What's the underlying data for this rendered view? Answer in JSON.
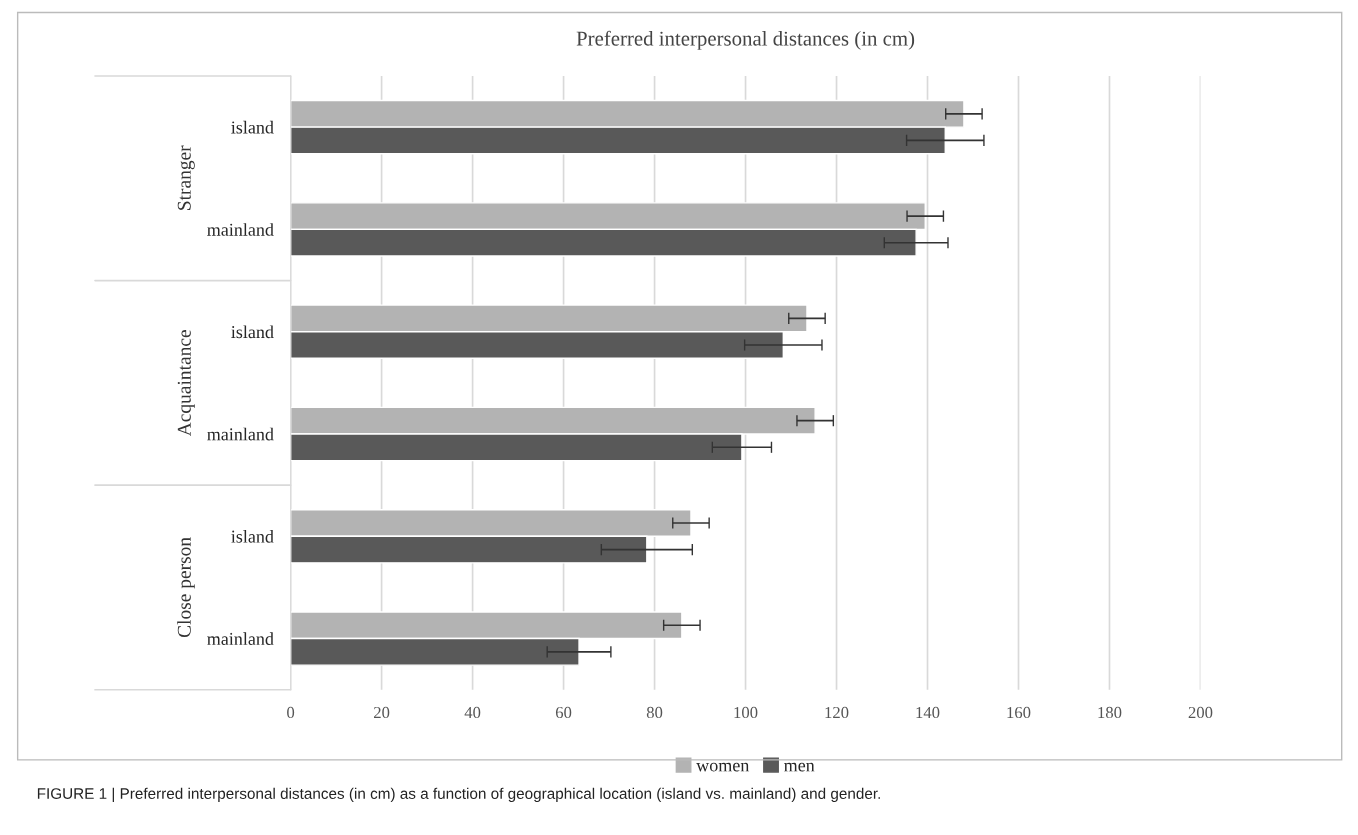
{
  "chart_data": {
    "type": "bar",
    "orientation": "horizontal",
    "title": "Preferred interpersonal distances (in cm)",
    "categories": [
      "island",
      "mainland",
      "island",
      "mainland",
      "island",
      "mainland"
    ],
    "series": [
      {
        "name": "women",
        "color": "#b3b3b3",
        "values": [
          148,
          139.5,
          113.5,
          115.3,
          88,
          86
        ],
        "errors": [
          4,
          4,
          4,
          4,
          4,
          4
        ]
      },
      {
        "name": "men",
        "color": "#595959",
        "values": [
          143.9,
          137.5,
          108.3,
          99.2,
          78.3,
          63.4
        ],
        "errors": [
          8.5,
          7,
          8.5,
          6.5,
          10,
          7
        ]
      }
    ],
    "xlim": [
      0,
      200
    ],
    "xticks": [
      0,
      20,
      40,
      60,
      80,
      100,
      120,
      140,
      160,
      180,
      200
    ],
    "grid": "x",
    "legend": "bottom",
    "annotations": [
      "Stranger",
      "Acquaintance",
      "Close person",
      "FIGURE 1 | Preferred interpersonal distances (in cm) as a function of geographical location (island vs. mainland) and gender."
    ]
  }
}
